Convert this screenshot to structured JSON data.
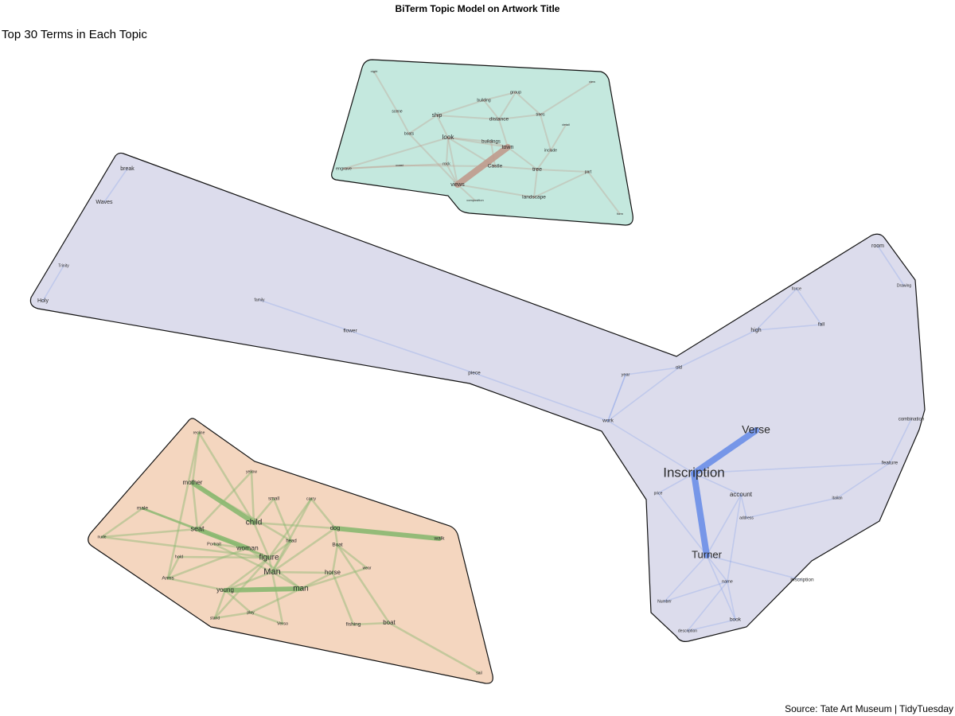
{
  "header": {
    "title": "BiTerm Topic Model on Artwork Title",
    "subtitle": "Top 30 Terms in Each Topic"
  },
  "footer": {
    "caption": "Source: Tate Art Museum | TidyTuesday"
  },
  "colors": {
    "hull_stroke": "#111111",
    "topic_1_fill": "#c4e8de",
    "topic_1_edge": "#c09a8c",
    "topic_2_fill": "#dcdcec",
    "topic_2_edge": "#6a8ee8",
    "topic_3_fill": "#f4d6bf",
    "topic_3_edge": "#8ab870"
  },
  "topics": [
    {
      "id": "landscape",
      "color_key": "topic_1",
      "terms": [
        "night",
        "view",
        "building",
        "group",
        "scene",
        "ship",
        "distance",
        "trees",
        "detail",
        "boats",
        "look",
        "buildings",
        "town",
        "include",
        "engrave",
        "coast",
        "rock",
        "Castle",
        "tree",
        "part",
        "views",
        "composition",
        "landscape",
        "form"
      ],
      "strong_edges": [
        [
          "town",
          "views"
        ]
      ],
      "weak_edges": [
        [
          "ship",
          "look"
        ],
        [
          "ship",
          "distance"
        ],
        [
          "look",
          "town"
        ],
        [
          "buildings",
          "town"
        ],
        [
          "Castle",
          "tree"
        ],
        [
          "look",
          "rock"
        ],
        [
          "distance",
          "trees"
        ],
        [
          "building",
          "group"
        ],
        [
          "scene",
          "boats"
        ],
        [
          "engrave",
          "rock"
        ],
        [
          "group",
          "trees"
        ],
        [
          "look",
          "Castle"
        ],
        [
          "trees",
          "include"
        ],
        [
          "tree",
          "part"
        ],
        [
          "landscape",
          "tree"
        ],
        [
          "views",
          "composition"
        ],
        [
          "views",
          "landscape"
        ],
        [
          "night",
          "scene"
        ],
        [
          "view",
          "trees"
        ],
        [
          "distance",
          "town"
        ],
        [
          "coast",
          "Castle"
        ],
        [
          "ship",
          "building"
        ],
        [
          "look",
          "buildings"
        ],
        [
          "group",
          "distance"
        ],
        [
          "boats",
          "views"
        ],
        [
          "engrave",
          "look"
        ],
        [
          "town",
          "tree"
        ],
        [
          "detail",
          "include"
        ],
        [
          "buildings",
          "Castle"
        ],
        [
          "rock",
          "views"
        ],
        [
          "landscape",
          "part"
        ],
        [
          "ship",
          "boats"
        ],
        [
          "include",
          "tree"
        ],
        [
          "coast",
          "engrave"
        ],
        [
          "building",
          "distance"
        ],
        [
          "look",
          "views"
        ],
        [
          "form",
          "part"
        ]
      ]
    },
    {
      "id": "inscription",
      "color_key": "topic_2",
      "terms": [
        "break",
        "Waves",
        "Trinity",
        "Holy",
        "family",
        "flower",
        "piece",
        "room",
        "Drawing",
        "force",
        "high",
        "fall",
        "old",
        "year",
        "work",
        "Verse",
        "combination",
        "feature",
        "Inscription",
        "price",
        "account",
        "italian",
        "address",
        "Turner",
        "name",
        "inscription",
        "Number",
        "book",
        "description"
      ],
      "strong_edges": [
        [
          "Inscription",
          "Verse"
        ],
        [
          "Inscription",
          "Turner"
        ]
      ],
      "weak_edges": [
        [
          "break",
          "Waves"
        ],
        [
          "Trinity",
          "Holy"
        ],
        [
          "family",
          "flower"
        ],
        [
          "flower",
          "piece"
        ],
        [
          "piece",
          "work"
        ],
        [
          "work",
          "year"
        ],
        [
          "year",
          "old"
        ],
        [
          "old",
          "high"
        ],
        [
          "high",
          "force"
        ],
        [
          "high",
          "fall"
        ],
        [
          "room",
          "Drawing"
        ],
        [
          "combination",
          "feature"
        ],
        [
          "Turner",
          "account"
        ],
        [
          "Turner",
          "inscription"
        ],
        [
          "account",
          "address"
        ],
        [
          "Turner",
          "name"
        ],
        [
          "name",
          "book"
        ],
        [
          "Turner",
          "Number"
        ],
        [
          "price",
          "Turner"
        ],
        [
          "Inscription",
          "price"
        ],
        [
          "work",
          "Inscription"
        ],
        [
          "year",
          "work"
        ],
        [
          "feature",
          "italian"
        ],
        [
          "address",
          "italian"
        ],
        [
          "name",
          "description"
        ],
        [
          "Turner",
          "book"
        ],
        [
          "Inscription",
          "account"
        ],
        [
          "old",
          "work"
        ],
        [
          "force",
          "fall"
        ],
        [
          "feature",
          "Inscription"
        ],
        [
          "book",
          "description"
        ],
        [
          "Number",
          "name"
        ],
        [
          "account",
          "name"
        ]
      ]
    },
    {
      "id": "figure",
      "color_key": "topic_3",
      "terms": [
        "recline",
        "yellow",
        "mother",
        "small",
        "carry",
        "male",
        "child",
        "seat",
        "dog",
        "walk",
        "nude",
        "Portrait",
        "head",
        "Boat",
        "woman",
        "figure",
        "hold",
        "wear",
        "Man",
        "horse",
        "Arms",
        "young",
        "man",
        "stand",
        "play",
        "Verso",
        "fishing",
        "boat",
        "sail"
      ],
      "strong_edges": [
        [
          "mother",
          "child"
        ],
        [
          "dog",
          "walk"
        ],
        [
          "young",
          "man"
        ],
        [
          "seat",
          "woman"
        ]
      ],
      "weak_edges": [
        [
          "figure",
          "Man"
        ],
        [
          "woman",
          "figure"
        ],
        [
          "horse",
          "Boat"
        ],
        [
          "fishing",
          "boat"
        ],
        [
          "boat",
          "sail"
        ],
        [
          "child",
          "figure"
        ],
        [
          "male",
          "seat"
        ],
        [
          "male",
          "nude"
        ],
        [
          "nude",
          "seat"
        ],
        [
          "Portrait",
          "woman"
        ],
        [
          "Man",
          "young"
        ],
        [
          "Man",
          "man"
        ],
        [
          "horse",
          "man"
        ],
        [
          "fishing",
          "horse"
        ],
        [
          "hold",
          "Arms"
        ],
        [
          "Arms",
          "young"
        ],
        [
          "young",
          "stand"
        ],
        [
          "stand",
          "play"
        ],
        [
          "play",
          "Verso"
        ],
        [
          "head",
          "figure"
        ],
        [
          "carry",
          "dog"
        ],
        [
          "small",
          "child"
        ],
        [
          "yellow",
          "child"
        ],
        [
          "recline",
          "mother"
        ],
        [
          "recline",
          "child"
        ],
        [
          "Boat",
          "wear"
        ],
        [
          "Boat",
          "dog"
        ],
        [
          "seat",
          "figure"
        ],
        [
          "male",
          "woman"
        ],
        [
          "child",
          "dog"
        ],
        [
          "Man",
          "horse"
        ],
        [
          "figure",
          "young"
        ],
        [
          "mother",
          "seat"
        ],
        [
          "nude",
          "figure"
        ],
        [
          "hold",
          "figure"
        ],
        [
          "Verso",
          "Man"
        ],
        [
          "small",
          "head"
        ],
        [
          "carry",
          "Man"
        ],
        [
          "stand",
          "figure"
        ],
        [
          "Arms",
          "woman"
        ],
        [
          "dog",
          "Man"
        ],
        [
          "boat",
          "Boat"
        ],
        [
          "play",
          "man"
        ],
        [
          "recline",
          "Arms"
        ],
        [
          "yellow",
          "seat"
        ],
        [
          "wear",
          "man"
        ],
        [
          "Portrait",
          "Man"
        ],
        [
          "head",
          "Man"
        ],
        [
          "young",
          "play"
        ],
        [
          "woman",
          "man"
        ],
        [
          "male",
          "figure"
        ],
        [
          "mother",
          "head"
        ],
        [
          "carry",
          "figure"
        ]
      ]
    }
  ]
}
